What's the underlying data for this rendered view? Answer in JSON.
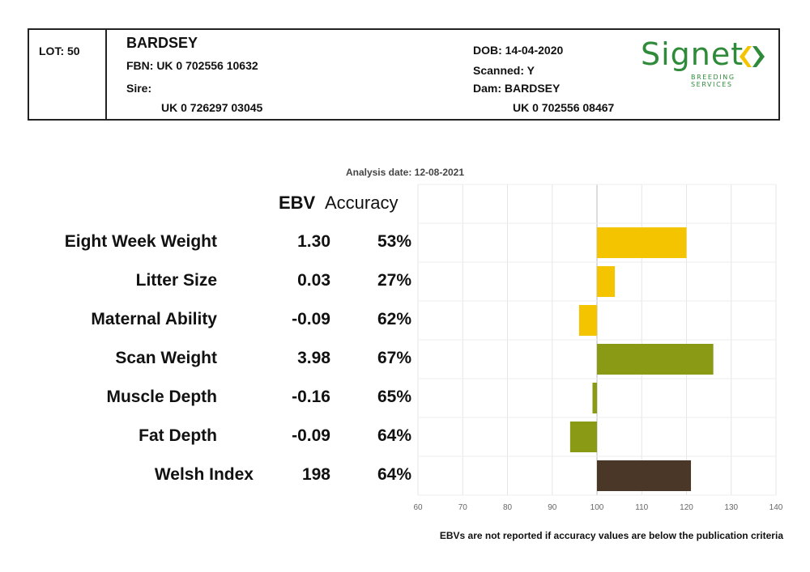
{
  "header": {
    "lot_label": "LOT: 50",
    "name": "BARDSEY",
    "fbn": "FBN: UK 0 702556 10632",
    "sire_label": "Sire:",
    "sire_id": "UK 0 726297 03045",
    "dob": "DOB: 14-04-2020",
    "scanned": "Scanned: Y",
    "dam": "Dam: BARDSEY",
    "dam_id": "UK 0 702556 08467"
  },
  "logo": {
    "word": "Signet",
    "subtitle": "BREEDING SERVICES",
    "color": "#2f8a3a",
    "mark_color": "#f5c400"
  },
  "analysis_date": "Analysis date: 12-08-2021",
  "columns": {
    "ebv": "EBV",
    "accuracy": "Accuracy"
  },
  "footnote": "EBVs are not reported if accuracy values are below the publication criteria",
  "chart_data": {
    "type": "bar",
    "orientation": "horizontal",
    "baseline": 100,
    "xlim": [
      60,
      140
    ],
    "xticks": [
      60,
      70,
      80,
      90,
      100,
      110,
      120,
      130,
      140
    ],
    "grid": true,
    "categories": [
      "Eight Week Weight",
      "Litter Size",
      "Maternal Ability",
      "Scan Weight",
      "Muscle Depth",
      "Fat Depth",
      "Welsh Index"
    ],
    "ebv": [
      "1.30",
      "0.03",
      "-0.09",
      "3.98",
      "-0.16",
      "-0.09",
      "198"
    ],
    "accuracy": [
      "53%",
      "27%",
      "62%",
      "67%",
      "65%",
      "64%",
      "64%"
    ],
    "values": [
      120,
      104,
      96,
      126,
      99,
      94,
      121
    ],
    "colors": [
      "#f5c400",
      "#f5c400",
      "#f5c400",
      "#8a9a14",
      "#8a9a14",
      "#8a9a14",
      "#4a3728"
    ]
  }
}
